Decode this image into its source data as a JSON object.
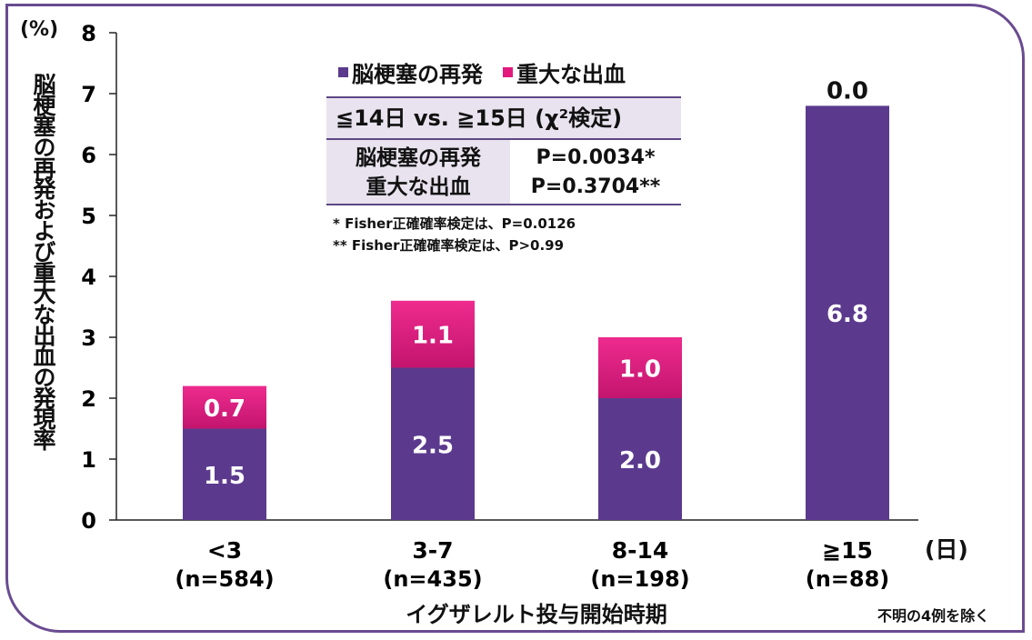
{
  "chart_data": {
    "type": "bar",
    "stacked": true,
    "categories": [
      "<3",
      "3-7",
      "8-14",
      "≧15"
    ],
    "category_n": [
      "(n=584)",
      "(n=435)",
      "(n=198)",
      "(n=88)"
    ],
    "series": [
      {
        "name": "脳梗塞の再発",
        "color": "#5b3a8e",
        "values": [
          1.5,
          2.5,
          2.0,
          6.8
        ],
        "labels": [
          "1.5",
          "2.5",
          "2.0",
          "6.8"
        ]
      },
      {
        "name": "重大な出血",
        "color": "#e3197e",
        "values": [
          0.7,
          1.1,
          1.0,
          0.0
        ],
        "labels": [
          "0.7",
          "1.1",
          "1.0",
          "0.0"
        ]
      }
    ],
    "ylim": [
      0,
      8
    ],
    "yticks": [
      "0",
      "1",
      "2",
      "3",
      "4",
      "5",
      "6",
      "7",
      "8"
    ],
    "ylabel": "脳梗塞の再発および重大な出血の発現率",
    "yunit": "(%)",
    "xlabel": "イグザレルト投与開始時期",
    "xunit": "(日)",
    "legend_position": "top-center",
    "grid": false
  },
  "stats_table": {
    "header": "≦14日 vs. ≧15日 (χ²検定)",
    "rows": [
      {
        "label": "脳梗塞の再発",
        "value": "P=0.0034*"
      },
      {
        "label": "重大な出血",
        "value": "P=0.3704**"
      }
    ]
  },
  "notes": [
    "* Fisher正確確率検定は、P=0.0126",
    "** Fisher正確確率検定は、P>0.99"
  ],
  "footnote": "不明の4例を除く"
}
